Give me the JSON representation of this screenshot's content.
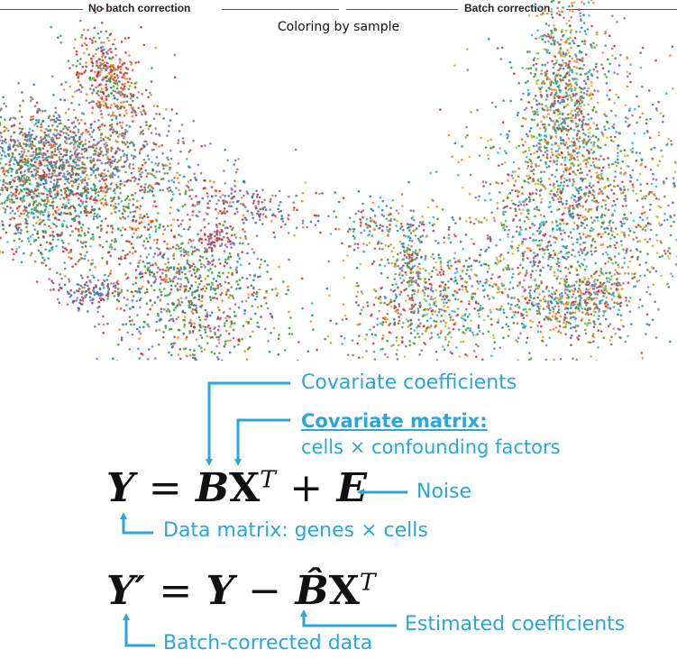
{
  "header": {
    "left_title": "No batch correction",
    "right_title": "Batch correction",
    "subtitle": "Coloring by sample"
  },
  "colors": {
    "accent": "#2aa6d8",
    "samples": [
      "#7b6fc4",
      "#8b7355",
      "#2ca02c",
      "#d62728",
      "#1f77b4",
      "#ff7f0e",
      "#17becf",
      "#bcbd22"
    ]
  },
  "annotations": {
    "covariate_coefficients": "Covariate coefficients",
    "covariate_matrix_title": "Covariate matrix:",
    "covariate_matrix_desc": "cells × confounding factors",
    "noise": "Noise",
    "data_matrix": "Data matrix: genes × cells",
    "estimated_coefficients": "Estimated coefficients",
    "batch_corrected": "Batch-corrected data"
  },
  "equations": {
    "eq1": {
      "Y": "Y",
      "eq": "=",
      "B": "B",
      "X": "X",
      "T": "T",
      "plus": "+",
      "E": "E"
    },
    "eq2": {
      "Yp": "Y′",
      "eq": "=",
      "Y": "Y",
      "minus": "−",
      "Bhat": "B̂",
      "X": "X",
      "T": "T"
    }
  }
}
